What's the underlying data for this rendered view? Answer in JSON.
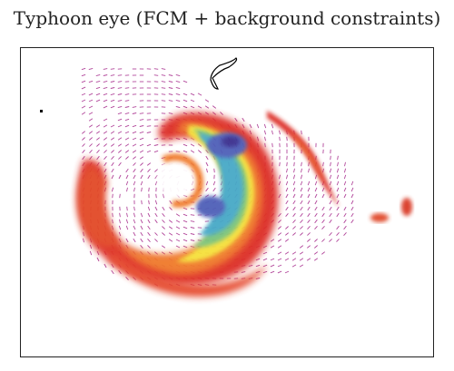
{
  "title": "Typhoon eye (FCM + background constraints)",
  "colors": {
    "vector": "#b2479b",
    "frame": "#222222",
    "coast": "#000000",
    "intensity_scale": [
      "#dd2f25",
      "#f07a2c",
      "#f6e13a",
      "#7cc47a",
      "#47a9c7",
      "#4f5fb8",
      "#3a2f8e"
    ]
  }
}
